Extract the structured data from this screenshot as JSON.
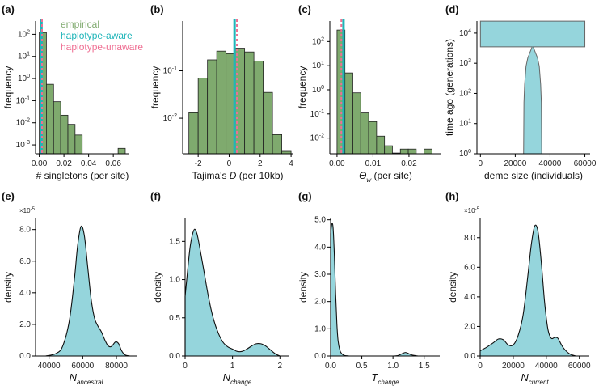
{
  "colors": {
    "empirical": "#7faa6e",
    "haplotype_aware": "#1fb5b9",
    "haplotype_unaware": "#ef6f93",
    "density": "#95d5dc",
    "demography": "#95d5dc"
  },
  "legend": [
    "empirical",
    "haplotype-aware",
    "haplotype-unaware"
  ],
  "chart_data": [
    {
      "id": "a",
      "panel_label": "(a)",
      "type": "bar",
      "scale": "log",
      "xlabel": "# singletons (per site)",
      "ylabel": "frequency",
      "xlim": [
        -0.003,
        0.073
      ],
      "ylim_exp": [
        -3.4,
        2.6
      ],
      "xticks": [
        0,
        0.02,
        0.04,
        0.06
      ],
      "xtick_labels": [
        "0.00",
        "0.02",
        "0.04",
        "0.06"
      ],
      "ytick_exps": [
        -3,
        -2,
        -1,
        0,
        1,
        2
      ],
      "ytick_labels": [
        {
          "base": "10",
          "exp": "-3"
        },
        {
          "base": "10",
          "exp": "-2"
        },
        {
          "base": "10",
          "exp": "-1"
        },
        {
          "base": "10",
          "exp": "0"
        },
        {
          "base": "10",
          "exp": "1"
        },
        {
          "base": "10",
          "exp": "2"
        }
      ],
      "bins": [
        [
          0,
          0.0058,
          120
        ],
        [
          0.0058,
          0.0116,
          0.55
        ],
        [
          0.0116,
          0.0174,
          0.09
        ],
        [
          0.0174,
          0.0232,
          0.022
        ],
        [
          0.0232,
          0.029,
          0.0085
        ],
        [
          0.029,
          0.0348,
          0.0028
        ],
        [
          0.0639,
          0.0697,
          0.0007
        ]
      ],
      "lines": [
        {
          "series": "haplotype-aware",
          "x": 0.0018
        },
        {
          "series": "haplotype-unaware",
          "x": 0.0022
        }
      ]
    },
    {
      "id": "b",
      "panel_label": "(b)",
      "type": "bar",
      "scale": "log",
      "xlabel": "Tajima's D (per 10kb)",
      "ylabel": "frequency",
      "xlim": [
        -3.0,
        4.1
      ],
      "ylim_exp": [
        -2.75,
        0.05
      ],
      "xticks": [
        -2,
        0,
        2,
        4
      ],
      "xtick_labels": [
        "-2",
        "0",
        "2",
        "4"
      ],
      "ytick_exps": [
        -2,
        -1
      ],
      "ytick_labels": [
        {
          "base": "10",
          "exp": "-2"
        },
        {
          "base": "10",
          "exp": "-1"
        }
      ],
      "bins": [
        [
          -2.6,
          -2.0,
          0.013
        ],
        [
          -2.0,
          -1.4,
          0.07
        ],
        [
          -1.4,
          -0.8,
          0.17
        ],
        [
          -0.8,
          -0.2,
          0.26
        ],
        [
          -0.2,
          0.4,
          0.23
        ],
        [
          0.4,
          1.0,
          0.3
        ],
        [
          1.0,
          1.6,
          0.25
        ],
        [
          1.6,
          2.2,
          0.16
        ],
        [
          2.2,
          2.8,
          0.035
        ],
        [
          2.8,
          3.4,
          0.0045
        ],
        [
          3.4,
          4.0,
          0.002
        ]
      ],
      "lines": [
        {
          "series": "haplotype-aware",
          "x": 0.35
        },
        {
          "series": "haplotype-unaware",
          "x": 0.5
        }
      ]
    },
    {
      "id": "c",
      "panel_label": "(c)",
      "type": "bar",
      "scale": "log",
      "xlabel": "per site",
      "ylabel": "frequency",
      "xlim": [
        -0.002,
        0.029
      ],
      "ylim_exp": [
        -2.65,
        2.85
      ],
      "xticks": [
        0,
        0.01,
        0.02
      ],
      "xtick_labels": [
        "0.00",
        "0.01",
        "0.02"
      ],
      "ytick_exps": [
        -2,
        -1,
        0,
        1,
        2
      ],
      "ytick_labels": [
        {
          "base": "10",
          "exp": "-2"
        },
        {
          "base": "10",
          "exp": "-1"
        },
        {
          "base": "10",
          "exp": "0"
        },
        {
          "base": "10",
          "exp": "1"
        },
        {
          "base": "10",
          "exp": "2"
        }
      ],
      "bins": [
        [
          0,
          0.0022,
          300
        ],
        [
          0.0022,
          0.0044,
          5
        ],
        [
          0.0044,
          0.0066,
          0.75
        ],
        [
          0.0066,
          0.0088,
          0.11
        ],
        [
          0.0088,
          0.011,
          0.048
        ],
        [
          0.011,
          0.0132,
          0.012
        ],
        [
          0.0132,
          0.0154,
          0.0048
        ],
        [
          0.0154,
          0.0176,
          0.0024
        ],
        [
          0.0176,
          0.0198,
          0.0035
        ],
        [
          0.0198,
          0.022,
          0.0035
        ],
        [
          0.0242,
          0.0264,
          0.0035
        ]
      ],
      "lines": [
        {
          "series": "haplotype-aware",
          "x": 0.0018
        },
        {
          "series": "haplotype-unaware",
          "x": 0.0012
        }
      ]
    },
    {
      "id": "d",
      "panel_label": "(d)",
      "type": "area",
      "scale": "log",
      "xlabel": "deme size (individuals)",
      "ylabel": "time ago (generations)",
      "xlim": [
        -2000,
        63000
      ],
      "ylim_exp": [
        0,
        4.4
      ],
      "xticks": [
        0,
        20000,
        40000,
        60000
      ],
      "xtick_labels": [
        "0",
        "20000",
        "40000",
        "60000"
      ],
      "ytick_exps": [
        0,
        1,
        2,
        3,
        4
      ],
      "ytick_labels": [
        {
          "base": "10",
          "exp": "0"
        },
        {
          "base": "10",
          "exp": "1"
        },
        {
          "base": "10",
          "exp": "2"
        },
        {
          "base": "10",
          "exp": "3"
        },
        {
          "base": "10",
          "exp": "4"
        }
      ],
      "ancestral_size": 60000,
      "change_time": 3500,
      "top_time": 25000,
      "shape": [
        [
          3500,
          30300
        ],
        [
          1500,
          32800
        ],
        [
          800,
          33800
        ],
        [
          200,
          34600
        ],
        [
          50,
          35000
        ],
        [
          1,
          35200
        ]
      ],
      "center": 30000
    },
    {
      "id": "e",
      "panel_label": "(e)",
      "type": "area",
      "xlabel_main": "N",
      "xlabel_sub": "ancestral",
      "ylabel": "density",
      "y_multiplier": "×10",
      "y_multiplier_exp": "-5",
      "xlim": [
        32000,
        92000
      ],
      "ylim": [
        0,
        8.7
      ],
      "xticks": [
        40000,
        60000,
        80000
      ],
      "xtick_labels": [
        "40000",
        "60000",
        "80000"
      ],
      "yticks": [
        0,
        2,
        4,
        6,
        8
      ],
      "ytick_labels": [
        "0.0",
        "2.0",
        "4.0",
        "6.0",
        "8.0"
      ],
      "x": [
        38000,
        44000,
        48000,
        52000,
        55000,
        57000,
        59000,
        61000,
        63000,
        65000,
        67000,
        69000,
        71000,
        73000,
        75000,
        77000,
        79000,
        80000,
        81500,
        83000,
        85000,
        88000
      ],
      "y": [
        0,
        0.15,
        0.6,
        2.2,
        4.8,
        7.0,
        8.2,
        7.6,
        5.6,
        3.6,
        2.4,
        1.9,
        1.55,
        1.05,
        0.65,
        0.6,
        0.85,
        0.9,
        0.75,
        0.35,
        0.08,
        0
      ]
    },
    {
      "id": "f",
      "panel_label": "(f)",
      "type": "area",
      "xlabel_main": "N",
      "xlabel_sub": "change",
      "ylabel": "density",
      "xlim": [
        0,
        2.2
      ],
      "ylim": [
        0,
        1.8
      ],
      "xticks": [
        0,
        1,
        2
      ],
      "xtick_labels": [
        "0",
        "1",
        "2"
      ],
      "yticks": [
        0,
        0.5,
        1.0,
        1.5
      ],
      "ytick_labels": [
        "0.0",
        "0.5",
        "1.0",
        "1.5"
      ],
      "x": [
        0,
        0.05,
        0.1,
        0.15,
        0.2,
        0.25,
        0.3,
        0.4,
        0.5,
        0.6,
        0.7,
        0.8,
        0.9,
        1.0,
        1.1,
        1.2,
        1.3,
        1.4,
        1.5,
        1.6,
        1.7,
        1.8,
        1.9,
        2.0
      ],
      "y": [
        0.78,
        1.1,
        1.4,
        1.58,
        1.66,
        1.6,
        1.45,
        1.1,
        0.75,
        0.48,
        0.3,
        0.18,
        0.12,
        0.09,
        0.06,
        0.06,
        0.09,
        0.13,
        0.16,
        0.16,
        0.13,
        0.08,
        0.03,
        0
      ]
    },
    {
      "id": "g",
      "panel_label": "(g)",
      "type": "area",
      "xlabel_main": "T",
      "xlabel_sub": "change",
      "ylabel": "density",
      "xlim": [
        0,
        1.75
      ],
      "ylim": [
        0,
        5.05
      ],
      "xticks": [
        0,
        0.5,
        1.0,
        1.5
      ],
      "xtick_labels": [
        "0.0",
        "0.5",
        "1.0",
        "1.5"
      ],
      "yticks": [
        0,
        1,
        2,
        3,
        4,
        5
      ],
      "ytick_labels": [
        "0.0",
        "1.0",
        "2.0",
        "3.0",
        "4.0",
        "5.0"
      ],
      "x": [
        0,
        0.02,
        0.04,
        0.06,
        0.08,
        0.1,
        0.12,
        0.15,
        0.18,
        0.22,
        0.3,
        0.4,
        1.0,
        1.1,
        1.15,
        1.2,
        1.25,
        1.3,
        1.4
      ],
      "y": [
        4.5,
        4.85,
        4.7,
        3.7,
        2.3,
        1.2,
        0.55,
        0.2,
        0.08,
        0.02,
        0,
        0,
        0,
        0.04,
        0.09,
        0.13,
        0.09,
        0.04,
        0
      ]
    },
    {
      "id": "h",
      "panel_label": "(h)",
      "type": "area",
      "xlabel_main": "N",
      "xlabel_sub": "current",
      "ylabel": "density",
      "y_multiplier": "×10",
      "y_multiplier_exp": "-5",
      "xlim": [
        0,
        66000
      ],
      "ylim": [
        0,
        9.3
      ],
      "xticks": [
        0,
        20000,
        40000,
        60000
      ],
      "xtick_labels": [
        "0",
        "20000",
        "40000",
        "60000"
      ],
      "yticks": [
        0,
        2,
        4,
        6,
        8
      ],
      "ytick_labels": [
        "0.0",
        "2.0",
        "4.0",
        "6.0",
        "8.0"
      ],
      "x": [
        0,
        4000,
        8000,
        11000,
        14000,
        17000,
        20000,
        23000,
        26000,
        29000,
        31000,
        33000,
        35000,
        37000,
        39000,
        41000,
        43000,
        45000,
        47000,
        50000,
        54000,
        58000
      ],
      "y": [
        0.35,
        0.6,
        0.9,
        1.15,
        1.1,
        0.75,
        0.75,
        1.4,
        2.8,
        5.6,
        7.6,
        8.8,
        8.4,
        6.3,
        3.6,
        1.8,
        1.2,
        1.25,
        1.2,
        0.6,
        0.15,
        0
      ]
    }
  ]
}
